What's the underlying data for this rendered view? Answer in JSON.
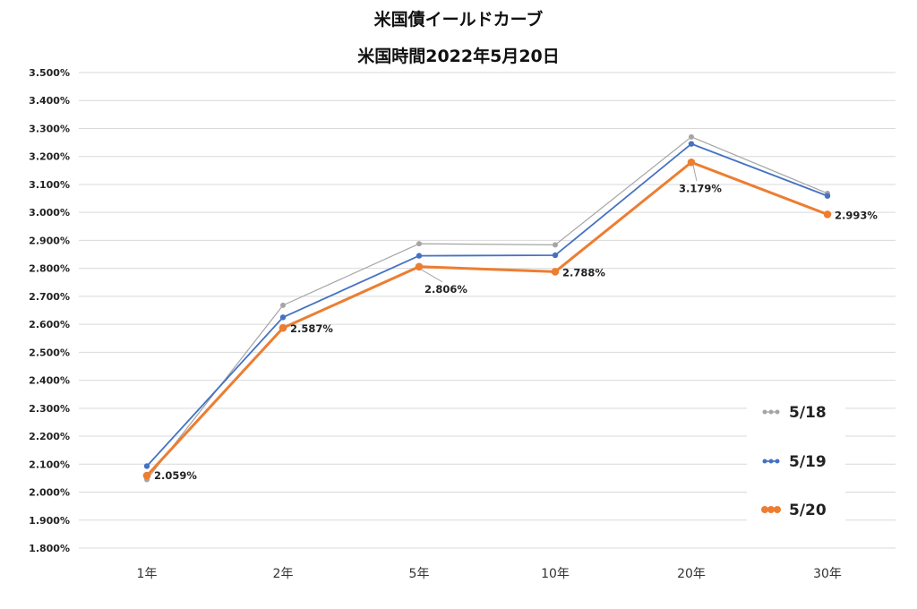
{
  "chart_data": {
    "type": "line",
    "title": "米国債イールドカーブ",
    "subtitle": "米国時間2022年5月20日",
    "categories": [
      "1年",
      "2年",
      "5年",
      "10年",
      "20年",
      "30年"
    ],
    "ylim": [
      1.8,
      3.5
    ],
    "yticks": [
      "1.800%",
      "1.900%",
      "2.000%",
      "2.100%",
      "2.200%",
      "2.300%",
      "2.400%",
      "2.500%",
      "2.600%",
      "2.700%",
      "2.800%",
      "2.900%",
      "3.000%",
      "3.100%",
      "3.200%",
      "3.300%",
      "3.400%",
      "3.500%"
    ],
    "grid": true,
    "legend_position": "right",
    "series": [
      {
        "name": "5/18",
        "color": "#A5A5A5",
        "values": [
          2.045,
          2.668,
          2.888,
          2.884,
          3.27,
          3.068
        ]
      },
      {
        "name": "5/19",
        "color": "#4472C4",
        "values": [
          2.093,
          2.625,
          2.845,
          2.847,
          3.245,
          3.059
        ]
      },
      {
        "name": "5/20",
        "color": "#ED7D31",
        "values": [
          2.059,
          2.587,
          2.806,
          2.788,
          3.179,
          2.993
        ]
      }
    ],
    "data_labels": [
      "2.059%",
      "2.587%",
      "2.806%",
      "2.788%",
      "3.179%",
      "2.993%"
    ]
  }
}
